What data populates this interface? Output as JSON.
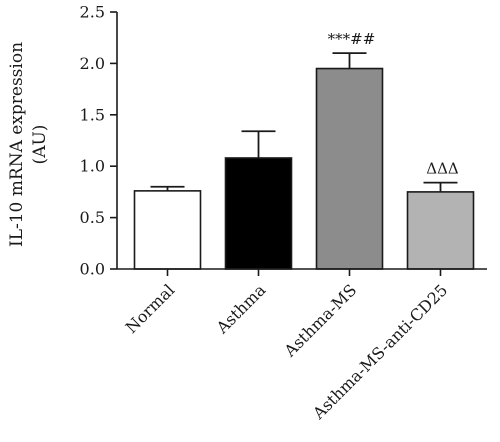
{
  "chart_data": {
    "type": "bar",
    "ylabel_line1": "IL-10 mRNA expression",
    "ylabel_line2": "(AU)",
    "ylim": [
      0,
      2.5
    ],
    "yticks": [
      "0.0",
      "0.5",
      "1.0",
      "1.5",
      "2.0",
      "2.5"
    ],
    "ytick_values": [
      0,
      0.5,
      1.0,
      1.5,
      2.0,
      2.5
    ],
    "grid": false,
    "categories": [
      "Normal",
      "Asthma",
      "Asthma-MS",
      "Asthma-MS-anti-CD25"
    ],
    "values": [
      0.76,
      1.08,
      1.95,
      0.75
    ],
    "errors": [
      0.04,
      0.26,
      0.15,
      0.09
    ],
    "colors": [
      "#ffffff",
      "#000000",
      "#8c8c8c",
      "#b3b3b3"
    ],
    "annotations": [
      "",
      "",
      "***##",
      "ΔΔΔ"
    ]
  }
}
